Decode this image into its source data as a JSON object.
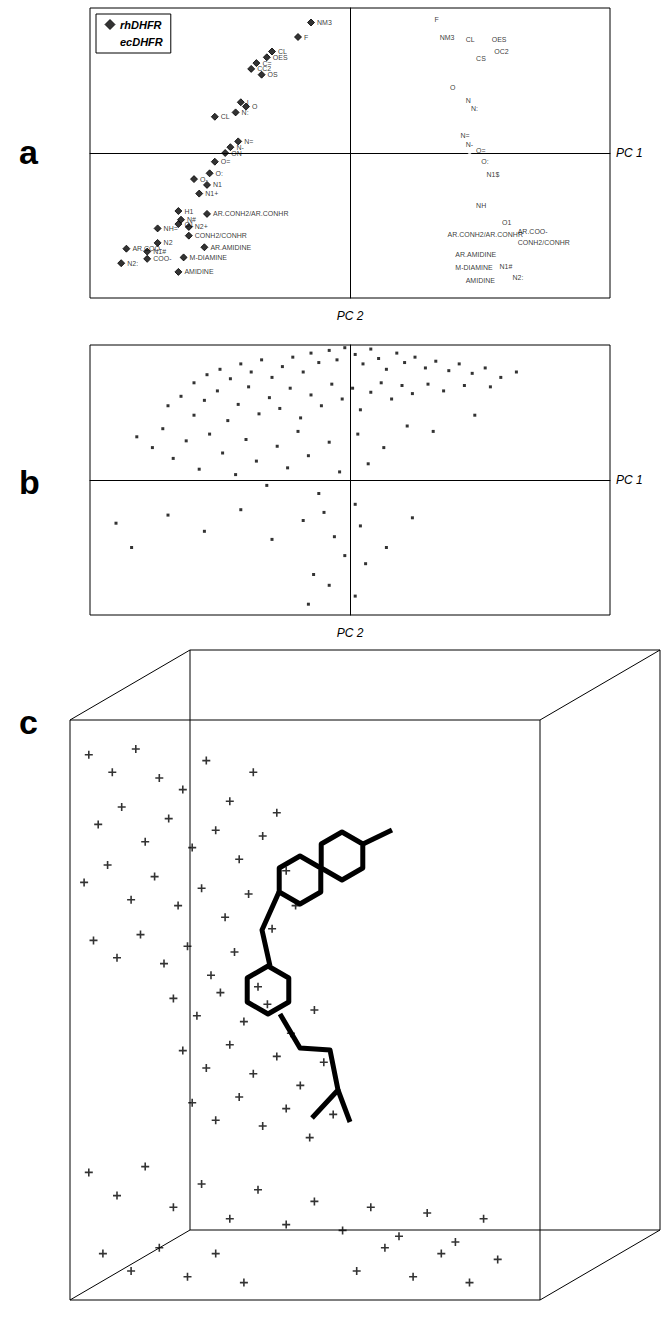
{
  "chart_data": [
    {
      "title": "a",
      "type": "scatter",
      "x_label": "PC 1",
      "y_label": "PC 2",
      "xlim": [
        -10,
        10
      ],
      "ylim": [
        -10,
        10
      ],
      "tick_labels": false,
      "legend": "upper left",
      "series": [
        {
          "name": "rhDHFR",
          "color": "#000000",
          "marker": "diamond",
          "x": [
            -1.5,
            -2,
            -3,
            -3.2,
            -3.6,
            -3.8,
            -3.4,
            -4.2,
            -4,
            -4.4,
            -5.2,
            -4.3,
            -4.6,
            -4.8,
            -5.2,
            -6,
            -5.4,
            -5.5,
            -5.8,
            -6.6,
            -5.5,
            -6.5,
            -6.6,
            -7.4,
            -6.2,
            -6.2,
            -8.6,
            -7.4,
            -5.6,
            -7.8,
            -6.4,
            -7.8,
            -8.8,
            -6.6
          ],
          "y": [
            9,
            8,
            7,
            6.6,
            6.2,
            5.8,
            5.4,
            3.5,
            3.2,
            2.8,
            2.5,
            0.8,
            0.4,
            0,
            -0.6,
            -1.8,
            -1.4,
            -2.2,
            -2.8,
            -4,
            -4.2,
            -4.6,
            -4.9,
            -5.2,
            -5.1,
            -5.7,
            -6.6,
            -6.2,
            -6.5,
            -6.8,
            -7.2,
            -7.3,
            -7.6,
            -8.2
          ],
          "point_labels": [
            "NM3",
            "F",
            "CL",
            "OES",
            "C=",
            "CC2",
            "OS",
            "I",
            "O",
            "N:",
            "CL",
            "N=",
            "N-",
            "ON",
            "O=",
            "O-",
            "O:",
            "N1",
            "N1+",
            "H1",
            "AR.CONH2/AR.CONHR",
            "N#",
            "O1",
            "NH=",
            "N2+",
            "CONH2/CONHR",
            "AR.COO-",
            "N2",
            "AR.AMIDINE",
            "N1#",
            "M-DIAMINE",
            "COO-",
            "N2:",
            "AMIDINE"
          ]
        },
        {
          "name": "ecDHFR",
          "color": "#000000",
          "marker": "open_diamond",
          "x": [
            3,
            3.2,
            4.2,
            5.2,
            5.3,
            4.6,
            3.6,
            4.2,
            4.4,
            4,
            4.2,
            4.6,
            4.8,
            5,
            4.6,
            3.5,
            5.6,
            6.2,
            6.2,
            3.8,
            3.8,
            5.5,
            4.2,
            6
          ],
          "y": [
            9.2,
            8,
            7.8,
            7.8,
            7,
            6.5,
            4.5,
            3.6,
            3.1,
            1.2,
            0.6,
            0.2,
            -0.6,
            -1.5,
            -3.6,
            -5.6,
            -4.8,
            -5.4,
            -6.2,
            -7,
            -7.9,
            -7.8,
            -8.8,
            -8.6
          ],
          "point_labels": [
            "F",
            "NM3",
            "CL",
            "OES",
            "OC2",
            "CS",
            "O",
            "N",
            "N:",
            "N=",
            "N-",
            "O=",
            "O:",
            "N1$",
            "NH",
            "AR.CONH2/AR.CONHR",
            "O1",
            "AR.COO-",
            "CONH2/CONHR",
            "AR.AMIDINE",
            "M-DIAMINE",
            "N1#",
            "AMIDINE",
            "N2:"
          ]
        }
      ]
    },
    {
      "title": "b",
      "type": "scatter",
      "x_label": "PC 1",
      "y_label": "PC 2",
      "xlim": [
        -10,
        10
      ],
      "ylim": [
        -10,
        10
      ],
      "tick_labels": false,
      "color": "#000000",
      "marker": "square",
      "x": [
        -6,
        -5.5,
        -5,
        -4.6,
        -4.2,
        -3.8,
        -3.4,
        -3,
        -2.6,
        -2.2,
        -1.8,
        -1.5,
        -1.2,
        -0.8,
        -0.5,
        -0.2,
        0.2,
        0.5,
        0.8,
        1.1,
        1.4,
        1.8,
        2.1,
        2.5,
        2.9,
        3.3,
        3.8,
        4.2,
        4.7,
        5.2,
        5.8,
        6.4,
        -7,
        -6.5,
        -6,
        -5.6,
        -5.1,
        -4.7,
        -4.3,
        -3.9,
        -3.5,
        -3.1,
        -2.7,
        -2.3,
        -1.9,
        -1.5,
        -1.1,
        -0.7,
        -0.3,
        0.1,
        0.4,
        0.8,
        1.2,
        1.6,
        2,
        2.4,
        3,
        3.6,
        4.4,
        5.4,
        -8.2,
        -7.6,
        -7.2,
        -6.8,
        -6.3,
        -5.8,
        -5.4,
        -4.9,
        -4.4,
        -4,
        -3.6,
        -3.2,
        -2.8,
        -2.4,
        -2,
        -1.6,
        -1.2,
        -0.8,
        -0.4,
        0.3,
        0.7,
        1.3,
        2.2,
        3.2,
        4.8,
        -9,
        -8.4,
        -7,
        -5.6,
        -4.2,
        -3,
        -1.8,
        -1,
        -0.6,
        0.2,
        0.4,
        -0.2,
        0.6,
        -1.4,
        -0.8,
        0.2,
        -1.6,
        1.4,
        2.4
      ],
      "y": [
        7.2,
        7.8,
        8.2,
        7.5,
        8.6,
        8,
        8.9,
        7.6,
        8.4,
        9.1,
        8,
        9.4,
        8.7,
        9.6,
        8.9,
        9.8,
        9.3,
        8.6,
        9.7,
        9,
        8.2,
        9.4,
        8.7,
        9.1,
        8.3,
        8.8,
        8.1,
        8.6,
        7.9,
        8.3,
        7.6,
        8,
        5.5,
        6.2,
        4.8,
        5.9,
        6.6,
        4.4,
        5.6,
        6.9,
        4.9,
        6.1,
        5.3,
        6.8,
        4.6,
        6.3,
        5.5,
        7.1,
        6,
        6.8,
        5.2,
        6.5,
        7.2,
        6,
        7,
        6.4,
        7.1,
        6.6,
        7,
        6.9,
        3.2,
        2.4,
        3.8,
        1.6,
        2.9,
        0.8,
        3.4,
        2,
        0.4,
        3,
        1.4,
        -0.4,
        2.5,
        0.9,
        3.6,
        1.8,
        -1,
        2.8,
        0.6,
        3.4,
        1.2,
        2.4,
        4,
        3.6,
        4.8,
        -3.2,
        -5,
        -2.6,
        -3.8,
        -2.2,
        -4.4,
        -3,
        -2.4,
        -4.2,
        -1.8,
        -3.4,
        -5.6,
        -6.2,
        -7,
        -7.8,
        -8.6,
        -9.2,
        -5,
        -2.8
      ]
    },
    {
      "title": "c",
      "type": "scatter",
      "xlim": [
        0,
        10
      ],
      "ylim": [
        0,
        10
      ],
      "tick_labels": false,
      "color": "#000000",
      "marker": "cross",
      "x": [
        0.4,
        0.9,
        1.4,
        1.9,
        2.4,
        2.9,
        3.4,
        3.9,
        4.4,
        0.6,
        1.1,
        1.6,
        2.1,
        2.6,
        3.1,
        3.6,
        4.1,
        4.6,
        0.3,
        0.8,
        1.3,
        1.8,
        2.3,
        2.8,
        3.3,
        3.8,
        4.3,
        4.8,
        0.5,
        1,
        1.5,
        2,
        2.5,
        3,
        3.5,
        4,
        2.2,
        2.7,
        3.2,
        3.7,
        4.2,
        4.7,
        5.2,
        2.4,
        2.9,
        3.4,
        3.9,
        4.4,
        4.9,
        5.4,
        2.6,
        3.1,
        3.6,
        4.1,
        4.6,
        5.1,
        5.6,
        0.4,
        1,
        1.6,
        2.2,
        2.8,
        3.4,
        4,
        4.6,
        5.2,
        5.8,
        6.4,
        7,
        7.6,
        8.2,
        8.8,
        0.7,
        1.3,
        1.9,
        2.5,
        3.1,
        3.7,
        6.1,
        6.7,
        7.3,
        7.9,
        8.5,
        9.1
      ],
      "y": [
        9.4,
        9.1,
        9.5,
        9,
        8.8,
        9.3,
        8.6,
        9.1,
        8.4,
        8.2,
        8.5,
        7.9,
        8.3,
        7.8,
        8.1,
        7.6,
        8,
        7.4,
        7.2,
        7.5,
        6.9,
        7.3,
        6.8,
        7.1,
        6.6,
        7,
        6.4,
        6.8,
        6.2,
        5.9,
        6.3,
        5.8,
        6.1,
        5.6,
        6,
        5.4,
        5.2,
        4.9,
        5.3,
        4.8,
        5.1,
        4.6,
        5,
        4.3,
        4,
        4.4,
        3.9,
        4.2,
        3.7,
        4.1,
        3.4,
        3.1,
        3.5,
        3,
        3.3,
        2.8,
        3.2,
        2.2,
        1.8,
        2.3,
        1.6,
        2,
        1.4,
        1.9,
        1.3,
        1.7,
        1.2,
        1.6,
        1.1,
        1.5,
        1,
        1.4,
        0.8,
        0.5,
        0.9,
        0.4,
        0.8,
        0.3,
        0.5,
        0.9,
        0.4,
        0.8,
        0.3,
        0.7
      ]
    }
  ]
}
